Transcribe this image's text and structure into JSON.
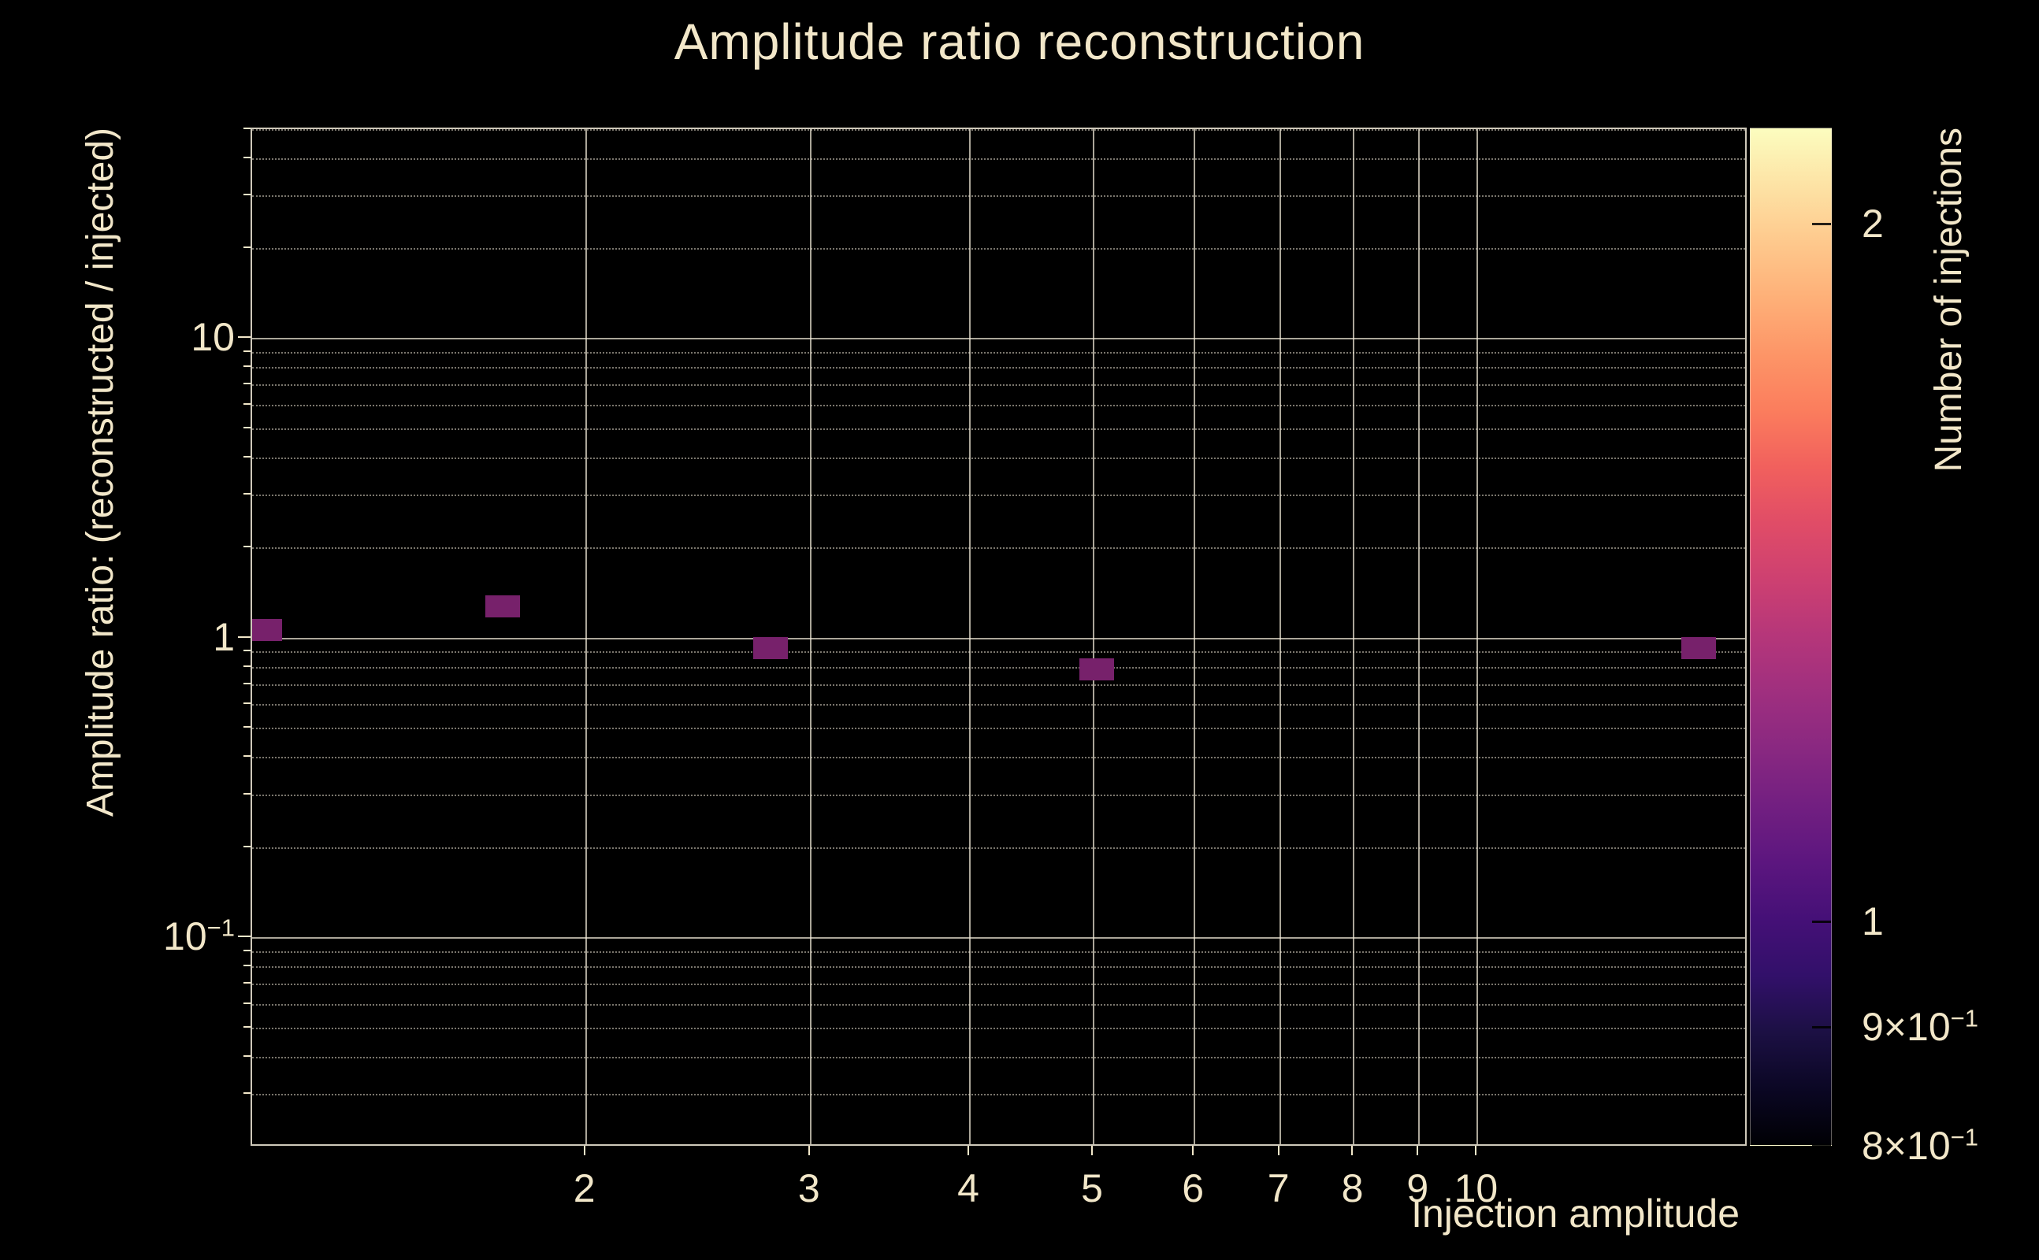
{
  "page": {
    "background_color": "#000000",
    "text_color": "#f2e7c9",
    "axis_frame_color": "rgba(243,236,218,0.85)"
  },
  "chart_data": {
    "type": "heatmap",
    "title": "Amplitude ratio reconstruction",
    "xlabel": "Injection amplitude",
    "ylabel": "Amplitude ratio: (reconstructed / injected)",
    "colorbar_label": "Number of injections",
    "xscale": "log",
    "yscale": "log",
    "zscale": "log",
    "xlim": [
      1.095,
      16.3
    ],
    "ylim": [
      0.02,
      50.2
    ],
    "zlim": [
      0.8,
      2.2
    ],
    "grid": {
      "major_color": "rgba(243,236,218,0.70)",
      "minor_color": "rgba(243,236,218,0.50)",
      "major_style": "solid",
      "minor_style": "dotted"
    },
    "axis_color": "#f2e7c9",
    "x_ticks": [
      {
        "value": 2,
        "label": "2"
      },
      {
        "value": 3,
        "label": "3"
      },
      {
        "value": 4,
        "label": "4"
      },
      {
        "value": 5,
        "label": "5"
      },
      {
        "value": 6,
        "label": "6"
      },
      {
        "value": 7,
        "label": "7"
      },
      {
        "value": 8,
        "label": "8"
      },
      {
        "value": 9,
        "label": "9"
      },
      {
        "value": 10,
        "label": "10"
      }
    ],
    "y_ticks": [
      {
        "value": 10,
        "label": "10"
      },
      {
        "value": 1,
        "label": "1"
      },
      {
        "value": 0.1,
        "label": "10^−1"
      }
    ],
    "colorbar_ticks": [
      {
        "value": 2,
        "label": "2"
      },
      {
        "value": 1,
        "label": "1"
      },
      {
        "value": 0.9,
        "label": "9×10^−1"
      },
      {
        "value": 0.8,
        "label": "8×10^−1"
      }
    ],
    "colormap_stops": [
      "#000004",
      "#0b0724",
      "#1c1044",
      "#32106a",
      "#451077",
      "#5c167f",
      "#721f81",
      "#892881",
      "#9f2f7f",
      "#b5367a",
      "#cd4071",
      "#e04c67",
      "#f1605d",
      "#fb7d5d",
      "#fd9567",
      "#feb078",
      "#fec98d",
      "#fde3a5",
      "#fcfdbf"
    ],
    "bin_color": "#77216b",
    "bins": [
      {
        "x": 1.12,
        "y": 1.07,
        "count": 1
      },
      {
        "x": 1.72,
        "y": 1.28,
        "count": 1
      },
      {
        "x": 2.79,
        "y": 0.93,
        "count": 1
      },
      {
        "x": 5.03,
        "y": 0.79,
        "count": 1
      },
      {
        "x": 14.9,
        "y": 0.93,
        "count": 1
      }
    ]
  }
}
